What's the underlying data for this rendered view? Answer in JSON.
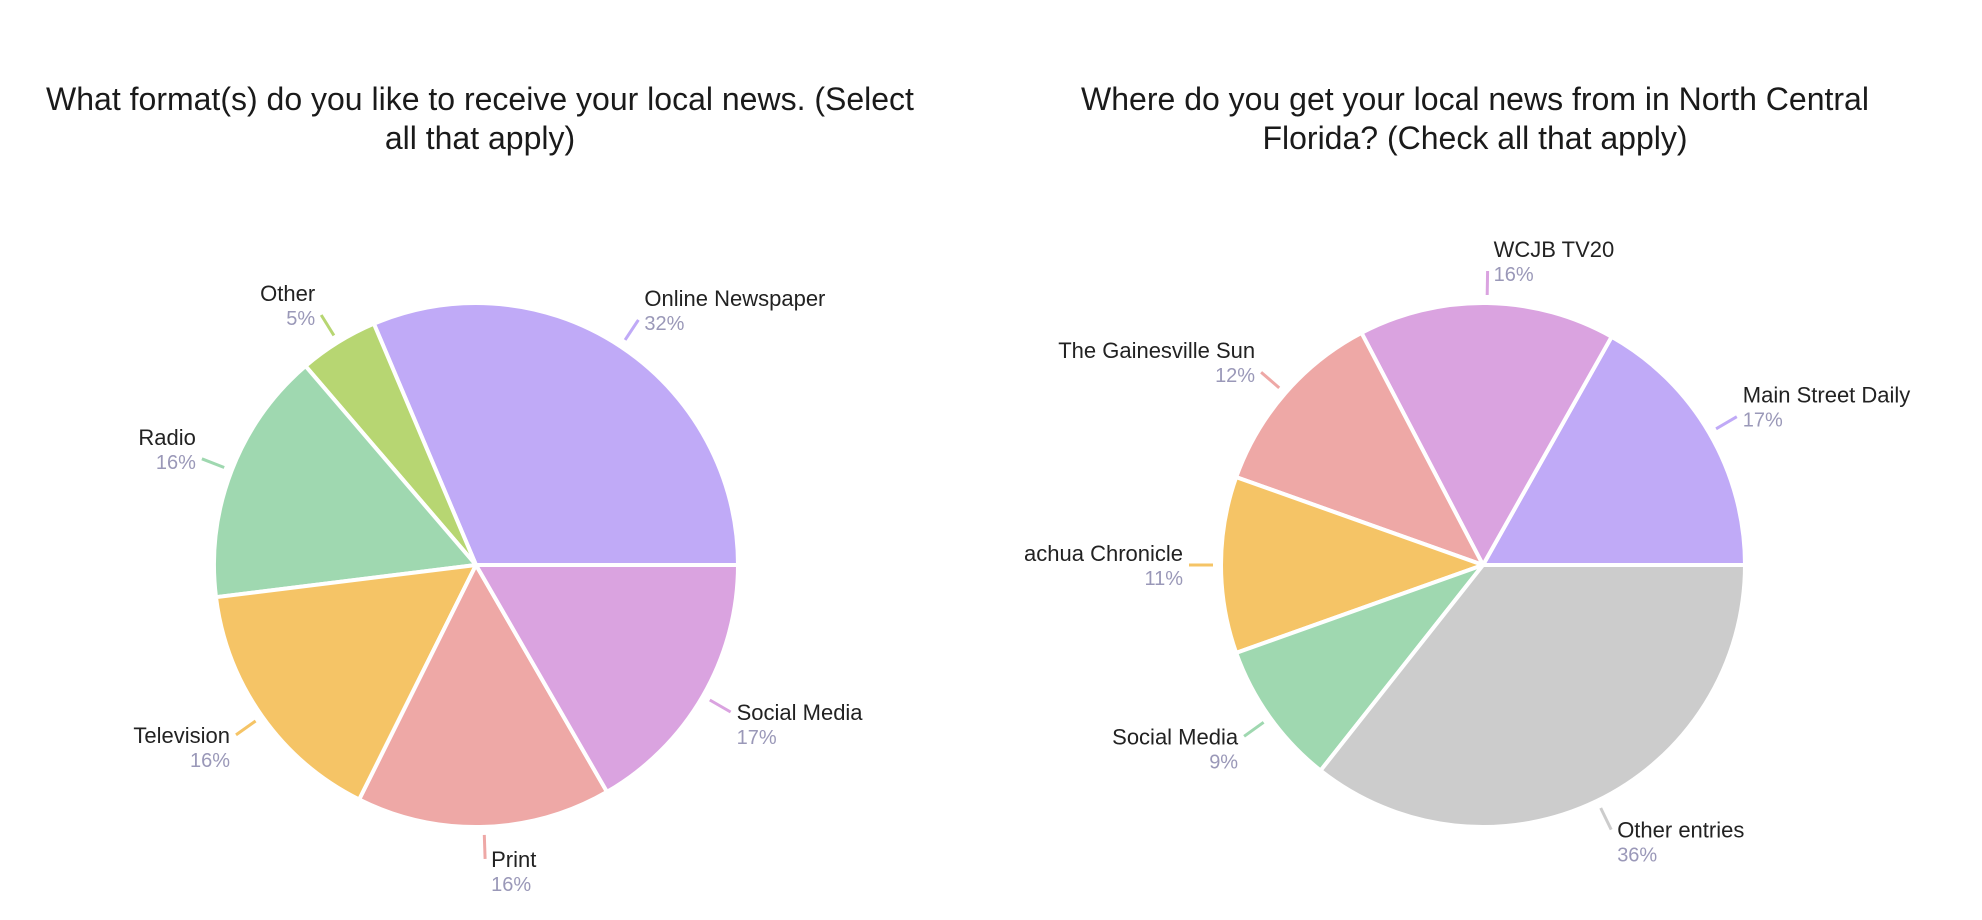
{
  "chart_data": [
    {
      "type": "pie",
      "title": "What format(s) do you like to receive your local news. (Select all that apply)",
      "slices": [
        {
          "label": "Online Newspaper",
          "value": 32,
          "pct_label": "32%",
          "color": "#c0aaf7"
        },
        {
          "label": "Other",
          "value": 5,
          "pct_label": "5%",
          "color": "#b7d672"
        },
        {
          "label": "Radio",
          "value": 16,
          "pct_label": "16%",
          "color": "#9fd8b0"
        },
        {
          "label": "Television",
          "value": 16,
          "pct_label": "16%",
          "color": "#f5c466"
        },
        {
          "label": "Print",
          "value": 16,
          "pct_label": "16%",
          "color": "#eea8a6"
        },
        {
          "label": "Social Media",
          "value": 17,
          "pct_label": "17%",
          "color": "#daa3e0"
        }
      ]
    },
    {
      "type": "pie",
      "title": "Where do you get your local news from in North Central Florida? (Check all that apply)",
      "slices": [
        {
          "label": "Main Street Daily",
          "value": 17,
          "pct_label": "17%",
          "color": "#c0aaf7"
        },
        {
          "label": "WCJB TV20",
          "value": 16,
          "pct_label": "16%",
          "color": "#daa3e0"
        },
        {
          "label": "The Gainesville Sun",
          "value": 12,
          "pct_label": "12%",
          "color": "#eea8a6"
        },
        {
          "label": "Alachua Chronicle",
          "value": 11,
          "pct_label": "11%",
          "color": "#f5c466"
        },
        {
          "label": "Social Media",
          "value": 9,
          "pct_label": "9%",
          "color": "#9fd8b0"
        },
        {
          "label": "Other entries",
          "value": 36,
          "pct_label": "36%",
          "color": "#cccccc"
        }
      ]
    }
  ]
}
